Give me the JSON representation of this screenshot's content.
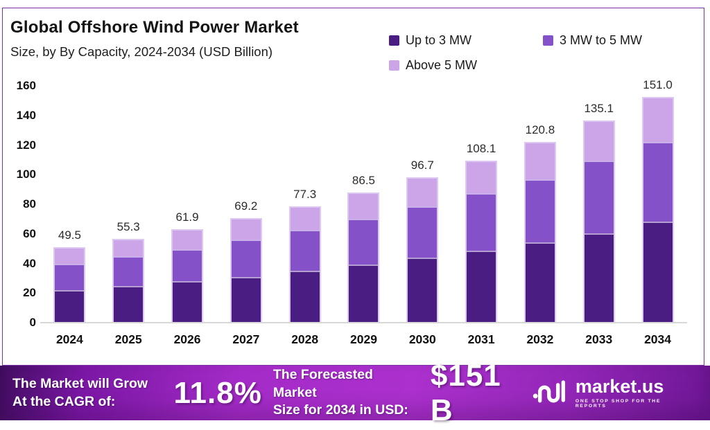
{
  "title": "Global Offshore Wind Power Market",
  "subtitle": "Size, by By Capacity, 2024-2034 (USD Billion)",
  "legend": [
    {
      "label": "Up to 3 MW",
      "color": "#4A1D82"
    },
    {
      "label": "3 MW to 5 MW",
      "color": "#8551C8"
    },
    {
      "label": "Above 5 MW",
      "color": "#CBA5E8"
    }
  ],
  "chart_data": {
    "type": "bar",
    "stacked": true,
    "title": "Global Offshore Wind Power Market Size, by By Capacity, 2024-2034 (USD Billion)",
    "categories": [
      "2024",
      "2025",
      "2026",
      "2027",
      "2028",
      "2029",
      "2030",
      "2031",
      "2032",
      "2033",
      "2034"
    ],
    "series": [
      {
        "name": "Up to 3 MW",
        "color": "#4A1D82",
        "values": [
          21.5,
          24.4,
          27.5,
          30.6,
          34.8,
          39.0,
          43.7,
          48.4,
          53.8,
          60.1,
          67.9
        ]
      },
      {
        "name": "3 MW to 5 MW",
        "color": "#8551C8",
        "values": [
          18.0,
          19.9,
          21.5,
          25.0,
          27.6,
          30.5,
          34.3,
          38.5,
          42.6,
          48.8,
          53.8
        ]
      },
      {
        "name": "Above 5 MW",
        "color": "#CBA5E8",
        "values": [
          10.0,
          11.0,
          12.9,
          13.6,
          14.9,
          17.0,
          18.7,
          21.2,
          24.4,
          26.2,
          29.3
        ]
      }
    ],
    "totals": [
      49.5,
      55.3,
      61.9,
      69.2,
      77.3,
      86.5,
      96.7,
      108.1,
      120.8,
      135.1,
      151.0
    ],
    "totals_display": [
      "49.5",
      "55.3",
      "61.9",
      "69.2",
      "77.3",
      "86.5",
      "96.7",
      "108.1",
      "120.8",
      "135.1",
      "151.0"
    ],
    "xlabel": "",
    "ylabel": "",
    "ylim": [
      0,
      160
    ],
    "ytick_step": 20,
    "grid": false,
    "legend_position": "top-right"
  },
  "footer": {
    "cagr_label_line1": "The Market will Grow",
    "cagr_label_line2": "At the CAGR of:",
    "cagr_value": "11.8%",
    "forecast_label_line1": "The Forecasted Market",
    "forecast_label_line2": "Size for 2034 in USD:",
    "forecast_value": "$151 B",
    "brand": "market.us",
    "brand_tagline": "One Stop Shop For The Reports"
  },
  "colors": {
    "card_border": "#7b2fa5",
    "bar_outline": "#dcc8f1",
    "axis_line": "#d8d8d8",
    "banner_gradient": [
      "#420d61",
      "#a52bc8",
      "#ab30cd",
      "#6d1694"
    ],
    "banner_text": "#ffffff"
  }
}
